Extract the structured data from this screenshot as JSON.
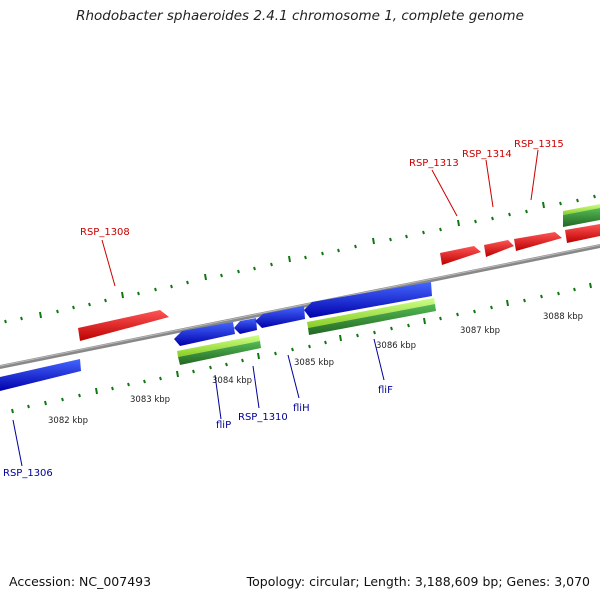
{
  "title": "Rhodobacter sphaeroides 2.4.1 chromosome 1, complete genome",
  "footer": {
    "accession": "Accession: NC_007493",
    "topology": "Topology: circular; Length: 3,188,609 bp; Genes: 3,070"
  },
  "colors": {
    "forward_gene": "#ee1111",
    "reverse_gene": "#1111dd",
    "feature_green": "#339933",
    "feature_lightgreen": "#aaee44",
    "axis": "#888888",
    "tick": "#117711",
    "label_forward": "#cc0000",
    "label_reverse": "#000099"
  },
  "scale_ticks": [
    "3082 kbp",
    "3083 kbp",
    "3084 kbp",
    "3085 kbp",
    "3086 kbp",
    "3087 kbp",
    "3088 kbp"
  ],
  "gene_labels": {
    "forward": [
      "RSP_1308",
      "RSP_1313",
      "RSP_1314",
      "RSP_1315"
    ],
    "reverse": [
      "RSP_1306",
      "fliP",
      "RSP_1310",
      "fliH",
      "fliF"
    ]
  }
}
